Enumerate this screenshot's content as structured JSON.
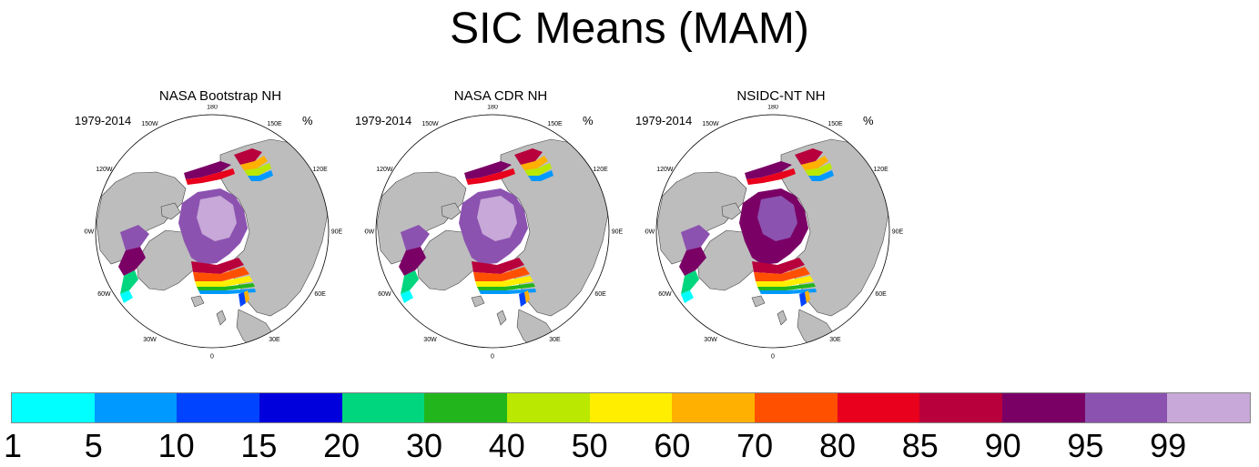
{
  "title": "SIC Means (MAM)",
  "panels": [
    {
      "title": "NASA Bootstrap NH",
      "period": "1979-2014",
      "unit": "%"
    },
    {
      "title": "NASA CDR NH",
      "period": "1979-2014",
      "unit": "%"
    },
    {
      "title": "NSIDC-NT NH",
      "period": "1979-2014",
      "unit": "%"
    }
  ],
  "longitude_labels": [
    "180",
    "150E",
    "120E",
    "90E",
    "60E",
    "30E",
    "0",
    "30W",
    "60W",
    "90W",
    "120W",
    "150W"
  ],
  "colorbar": {
    "labels": [
      "1",
      "5",
      "10",
      "15",
      "20",
      "30",
      "40",
      "50",
      "60",
      "70",
      "80",
      "85",
      "90",
      "95",
      "99"
    ],
    "colors": [
      "#00ffff",
      "#0099ff",
      "#0044ff",
      "#0000dd",
      "#00d67e",
      "#22b61c",
      "#bbe800",
      "#ffee00",
      "#ffb000",
      "#ff5000",
      "#e8001c",
      "#b8003c",
      "#7a0066",
      "#8c52b0",
      "#c7a8d8"
    ]
  },
  "map_colors": {
    "land": "#bdbdbd",
    "ocean": "#ffffff",
    "coast": "#444444"
  }
}
